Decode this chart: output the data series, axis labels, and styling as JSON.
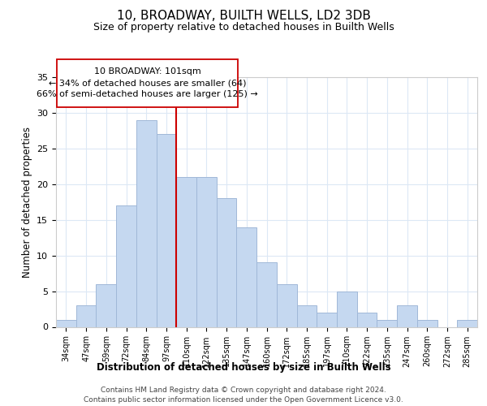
{
  "title": "10, BROADWAY, BUILTH WELLS, LD2 3DB",
  "subtitle": "Size of property relative to detached houses in Builth Wells",
  "xlabel": "Distribution of detached houses by size in Builth Wells",
  "ylabel": "Number of detached properties",
  "bin_labels": [
    "34sqm",
    "47sqm",
    "59sqm",
    "72sqm",
    "84sqm",
    "97sqm",
    "110sqm",
    "122sqm",
    "135sqm",
    "147sqm",
    "160sqm",
    "172sqm",
    "185sqm",
    "197sqm",
    "210sqm",
    "222sqm",
    "235sqm",
    "247sqm",
    "260sqm",
    "272sqm",
    "285sqm"
  ],
  "bar_heights": [
    1,
    3,
    6,
    17,
    29,
    27,
    21,
    21,
    18,
    14,
    9,
    6,
    3,
    2,
    5,
    2,
    1,
    3,
    1,
    0,
    1
  ],
  "bar_color": "#c5d8f0",
  "bar_edge_color": "#a0b8d8",
  "highlight_line_index": 5,
  "highlight_line_color": "#cc0000",
  "annotation_line1": "10 BROADWAY: 101sqm",
  "annotation_line2": "← 34% of detached houses are smaller (64)",
  "annotation_line3": "66% of semi-detached houses are larger (125) →",
  "annotation_box_color": "#ffffff",
  "annotation_box_edge": "#cc0000",
  "ylim": [
    0,
    35
  ],
  "yticks": [
    0,
    5,
    10,
    15,
    20,
    25,
    30,
    35
  ],
  "footer1": "Contains HM Land Registry data © Crown copyright and database right 2024.",
  "footer2": "Contains public sector information licensed under the Open Government Licence v3.0.",
  "background_color": "#ffffff",
  "grid_color": "#dce8f5"
}
